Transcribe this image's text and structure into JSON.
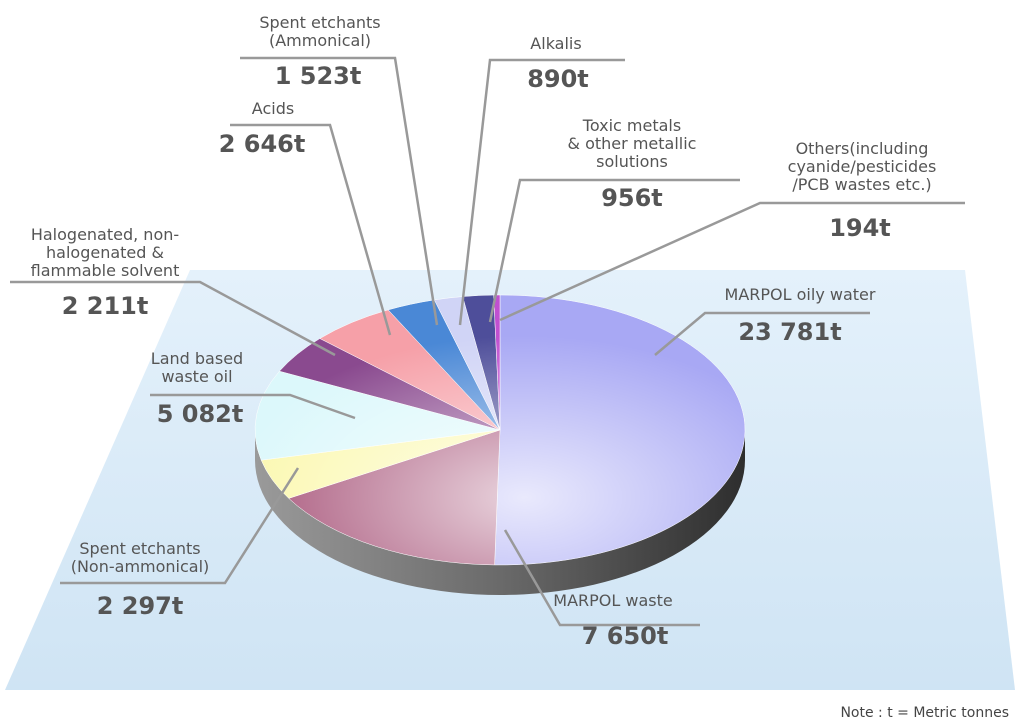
{
  "chart_data": {
    "type": "pie",
    "categories": [
      "MARPOL oily water",
      "MARPOL waste",
      "Spent etchants\n(Non-ammonical)",
      "Land based\nwaste oil",
      "Halogenated, non-\nhalogenated &\nflammable solvent",
      "Acids",
      "Spent etchants\n(Ammonical)",
      "Alkalis",
      "Toxic metals\n& other metallic\nsolutions",
      "Others(including\ncyanide/pesticides\n/PCB wastes etc.)"
    ],
    "values": [
      23781,
      7650,
      2297,
      5082,
      2211,
      2646,
      1523,
      890,
      956,
      194
    ],
    "value_labels": [
      "23 781t",
      "7 650t",
      "2 297t",
      "5 082t",
      "2 211t",
      "2 646t",
      "1 523t",
      "890t",
      "956t",
      "194t"
    ],
    "colors": [
      "#a8a8f4",
      "#a8557a",
      "#fbf8b0",
      "#dcf8fb",
      "#8a4a8f",
      "#f6a0a8",
      "#4a88d6",
      "#d0d4f6",
      "#4e4e9a",
      "#c050d0"
    ],
    "annotation": "Note : t = Metric tonnes"
  }
}
